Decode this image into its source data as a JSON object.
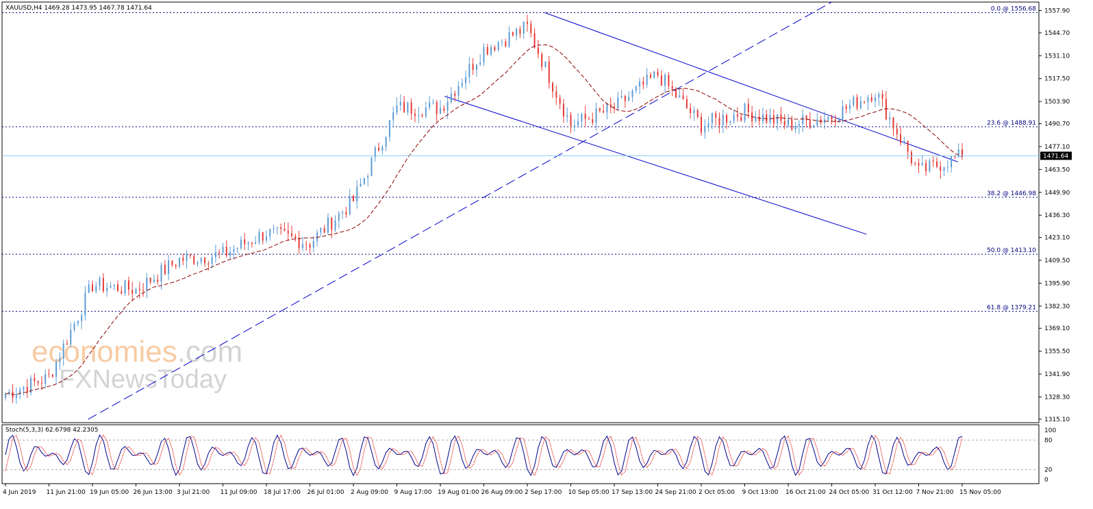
{
  "symbol_header": "XAUUSD,H4  1469.28 1473.95 1467.78 1471.64",
  "stoch_header": "Stoch(5,3,3) 62.6798 42.2305",
  "watermark": {
    "line1_a": "economies",
    "line1_b": ".com",
    "line2": "NewsToday",
    "line2_prefix": "FX"
  },
  "colors": {
    "bull": "#5b9bd5",
    "bear": "#e53935",
    "ma": "#8b0000",
    "trend": "#0000cd",
    "fib": "#00007f",
    "last_price_line": "#87cefa",
    "watermark_orange": "#f4a15a",
    "watermark_grey": "#b0b0b0"
  },
  "price_axis": {
    "ticks": [
      "1557.90",
      "1544.70",
      "1531.10",
      "1517.50",
      "1503.90",
      "1490.70",
      "1477.10",
      "1463.50",
      "1449.90",
      "1436.30",
      "1423.10",
      "1409.50",
      "1395.90",
      "1382.30",
      "1369.10",
      "1355.50",
      "1341.90",
      "1328.30",
      "1315.10"
    ],
    "last_price_label": "1471.64"
  },
  "stoch_axis": {
    "ticks": [
      "100",
      "80",
      "20",
      "0"
    ]
  },
  "time_axis": [
    "4 Jun 2019",
    "11 Jun 21:00",
    "19 Jun 05:00",
    "26 Jun 13:00",
    "3 Jul 21:00",
    "11 Jul 09:00",
    "18 Jul 17:00",
    "26 Jul 01:00",
    "2 Aug 09:00",
    "9 Aug 17:00",
    "19 Aug 01:00",
    "26 Aug 09:00",
    "2 Sep 17:00",
    "10 Sep 05:00",
    "17 Sep 13:00",
    "24 Sep 21:00",
    "2 Oct 05:00",
    "9 Oct 13:00",
    "16 Oct 21:00",
    "24 Oct 05:00",
    "31 Oct 12:00",
    "7 Nov 21:00",
    "15 Nov 05:00"
  ],
  "fib_levels": [
    {
      "label": "0.0 @ 1556.68",
      "price": 1556.68
    },
    {
      "label": "23.6 @ 1488.91",
      "price": 1488.91
    },
    {
      "label": "38.2 @ 1446.98",
      "price": 1446.98
    },
    {
      "label": "50.0 @ 1413.10",
      "price": 1413.1
    },
    {
      "label": "61.8 @ 1379.21",
      "price": 1379.21
    }
  ],
  "chart_data": {
    "type": "candlestick",
    "title": "XAUUSD,H4",
    "ohlc_last": {
      "open": 1469.28,
      "high": 1473.95,
      "low": 1467.78,
      "close": 1471.64
    },
    "ylim": [
      1313,
      1563
    ],
    "key_points": [
      {
        "date": "4 Jun 2019",
        "close": 1330
      },
      {
        "date": "11 Jun 21:00",
        "close": 1340
      },
      {
        "date": "19 Jun 05:00",
        "close": 1395
      },
      {
        "date": "26 Jun 13:00",
        "close": 1392
      },
      {
        "date": "3 Jul 21:00",
        "close": 1410
      },
      {
        "date": "11 Jul 09:00",
        "close": 1413
      },
      {
        "date": "18 Jul 17:00",
        "close": 1426
      },
      {
        "date": "26 Jul 01:00",
        "close": 1420
      },
      {
        "date": "2 Aug 09:00",
        "close": 1445
      },
      {
        "date": "9 Aug 17:00",
        "close": 1500
      },
      {
        "date": "19 Aug 01:00",
        "close": 1500
      },
      {
        "date": "26 Aug 09:00",
        "close": 1535
      },
      {
        "date": "2 Sep 17:00",
        "close": 1548
      },
      {
        "date": "10 Sep 05:00",
        "close": 1490
      },
      {
        "date": "17 Sep 13:00",
        "close": 1500
      },
      {
        "date": "24 Sep 21:00",
        "close": 1520
      },
      {
        "date": "2 Oct 05:00",
        "close": 1490
      },
      {
        "date": "9 Oct 13:00",
        "close": 1498
      },
      {
        "date": "16 Oct 21:00",
        "close": 1490
      },
      {
        "date": "24 Oct 05:00",
        "close": 1495
      },
      {
        "date": "31 Oct 12:00",
        "close": 1510
      },
      {
        "date": "7 Nov 21:00",
        "close": 1462
      },
      {
        "date": "15 Nov 05:00",
        "close": 1471.64
      }
    ],
    "stochastic": {
      "name": "Stoch(5,3,3)",
      "main": 62.6798,
      "signal": 42.2305,
      "levels": [
        80,
        20
      ],
      "ylim": [
        0,
        100
      ]
    }
  }
}
